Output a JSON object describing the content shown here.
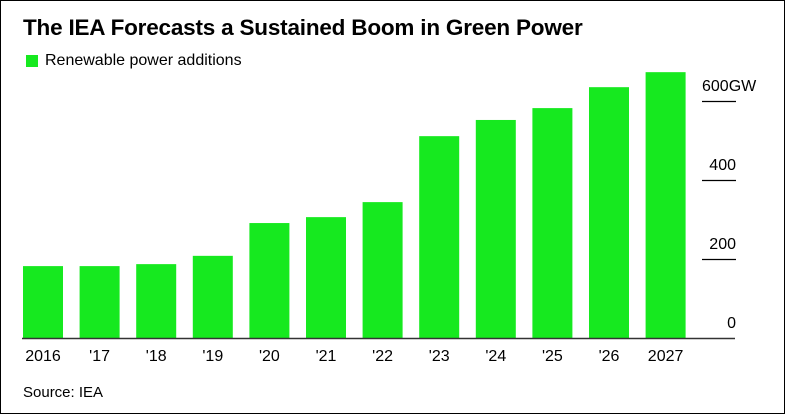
{
  "chart_data": {
    "type": "bar",
    "title": "The IEA Forecasts a Sustained Boom in Green Power",
    "legend": [
      {
        "label": "Renewable power additions",
        "color": "#16e91f"
      }
    ],
    "categories": [
      "2016",
      "'17",
      "'18",
      "'19",
      "'20",
      "'21",
      "'22",
      "'23",
      "'24",
      "'25",
      "'26",
      "2027"
    ],
    "series": [
      {
        "name": "Renewable power additions",
        "values": [
          182,
          182,
          187,
          208,
          291,
          306,
          344,
          511,
          552,
          582,
          635,
          673
        ]
      }
    ],
    "xlabel": "",
    "ylabel": "",
    "ylim": [
      0,
      680
    ],
    "yticks": [
      {
        "value": 0,
        "label": "0"
      },
      {
        "value": 200,
        "label": "200"
      },
      {
        "value": 400,
        "label": "400"
      },
      {
        "value": 600,
        "label": "600GW"
      }
    ],
    "y_axis_side": "right",
    "legend_position": "top-left",
    "grid": false,
    "source": "Source: IEA"
  },
  "colors": {
    "bar": "#16e91f",
    "text": "#000000",
    "axis": "#333333"
  }
}
